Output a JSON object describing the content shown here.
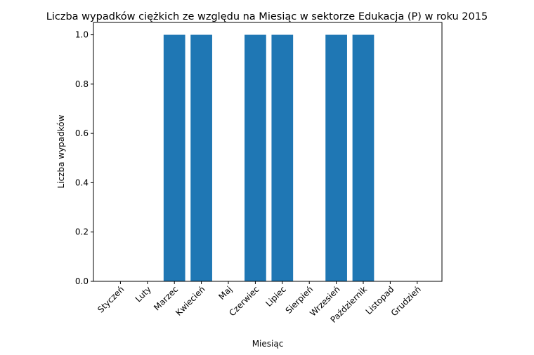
{
  "chart_data": {
    "type": "bar",
    "title": "Liczba wypadków ciężkich ze względu na Miesiąc w sektorze Edukacja  (P)   w roku 2015",
    "xlabel": "Miesiąc",
    "ylabel": "Liczba wypadków",
    "categories": [
      "Styczeń",
      "Luty",
      "Marzec",
      "Kwiecień",
      "Maj",
      "Czerwiec",
      "Lipiec",
      "Sierpień",
      "Wrzesień",
      "Październik",
      "Listopad",
      "Grudzień"
    ],
    "values": [
      0,
      0,
      1,
      1,
      0,
      1,
      1,
      0,
      1,
      1,
      0,
      0
    ],
    "ylim": [
      0,
      1.05
    ],
    "yticks": [
      "0.0",
      "0.2",
      "0.4",
      "0.6",
      "0.8",
      "1.0"
    ],
    "grid": false,
    "bar_color": "#1f77b4"
  }
}
